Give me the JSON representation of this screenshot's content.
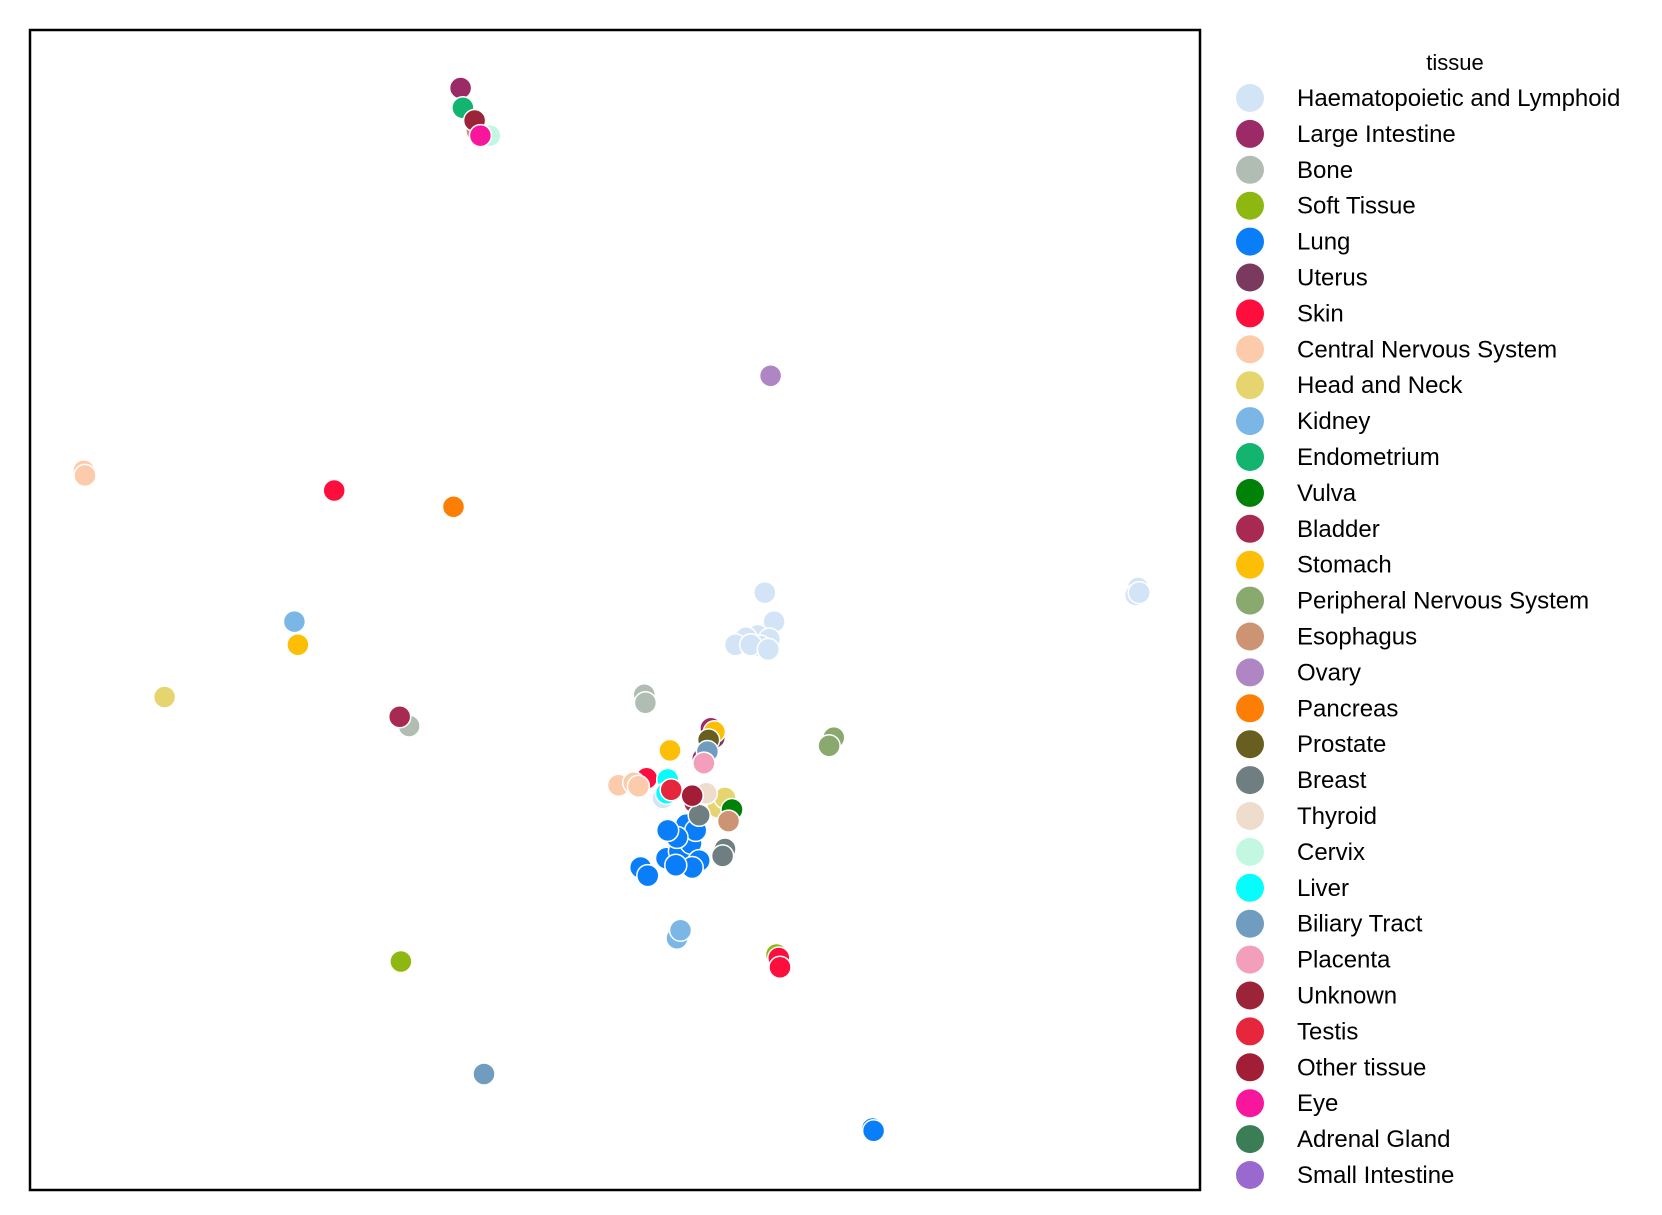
{
  "chart_data": {
    "type": "scatter",
    "title": "",
    "xlabel": "",
    "ylabel": "",
    "xlim": [
      0,
      100
    ],
    "ylim": [
      0,
      100
    ],
    "ticks": "hidden",
    "grid": false,
    "legend": {
      "title": "tissue",
      "placement": "outside-right"
    },
    "series": [
      {
        "name": "Haematopoietic and Lymphoid",
        "color": "#d3e4f6",
        "points": [
          [
            94.7,
            51.9
          ],
          [
            94.5,
            51.3
          ],
          [
            94.8,
            51.5
          ],
          [
            62.8,
            51.5
          ],
          [
            63.6,
            49.0
          ],
          [
            62.2,
            47.8
          ],
          [
            61.2,
            47.6
          ],
          [
            60.3,
            47.0
          ],
          [
            63.2,
            47.5
          ],
          [
            62.4,
            46.9
          ],
          [
            61.6,
            47.0
          ],
          [
            63.1,
            46.6
          ],
          [
            54.1,
            33.8
          ]
        ]
      },
      {
        "name": "Large Intestine",
        "color": "#9b2a66",
        "points": [
          [
            36.8,
            95.0
          ],
          [
            58.2,
            39.8
          ],
          [
            57.5,
            37.2
          ]
        ]
      },
      {
        "name": "Bone",
        "color": "#b1bcb3",
        "points": [
          [
            52.5,
            42.7
          ],
          [
            52.6,
            42.0
          ],
          [
            32.4,
            40.0
          ]
        ]
      },
      {
        "name": "Soft Tissue",
        "color": "#8fb712",
        "points": [
          [
            31.7,
            19.7
          ],
          [
            63.8,
            20.3
          ]
        ]
      },
      {
        "name": "Lung",
        "color": "#0a7ef9",
        "points": [
          [
            52.2,
            27.8
          ],
          [
            52.8,
            27.1
          ],
          [
            54.4,
            28.6
          ],
          [
            55.5,
            29.2
          ],
          [
            56.5,
            29.9
          ],
          [
            57.2,
            28.4
          ],
          [
            56.6,
            27.8
          ],
          [
            55.2,
            28.0
          ],
          [
            56.1,
            31.5
          ],
          [
            56.9,
            31.0
          ],
          [
            55.3,
            30.4
          ],
          [
            54.5,
            31.0
          ],
          [
            72.0,
            5.3
          ],
          [
            72.1,
            5.1
          ]
        ]
      },
      {
        "name": "Uterus",
        "color": "#7a3a5f",
        "points": [
          [
            58.5,
            39.0
          ]
        ]
      },
      {
        "name": "Skin",
        "color": "#fd0e3d",
        "points": [
          [
            26.0,
            60.3
          ],
          [
            52.7,
            35.5
          ],
          [
            64.0,
            20.0
          ],
          [
            64.1,
            19.2
          ]
        ]
      },
      {
        "name": "Central Nervous System",
        "color": "#fbcbac",
        "points": [
          [
            4.6,
            62.0
          ],
          [
            4.7,
            61.6
          ],
          [
            50.3,
            34.9
          ],
          [
            51.6,
            35.1
          ],
          [
            52.0,
            34.8
          ]
        ]
      },
      {
        "name": "Head and Neck",
        "color": "#e6d56f",
        "points": [
          [
            11.5,
            42.5
          ],
          [
            58.8,
            33.0
          ],
          [
            59.4,
            33.8
          ]
        ]
      },
      {
        "name": "Kidney",
        "color": "#7bb7e6",
        "points": [
          [
            22.6,
            49.0
          ],
          [
            55.3,
            21.7
          ],
          [
            55.6,
            22.4
          ]
        ]
      },
      {
        "name": "Endometrium",
        "color": "#13b370",
        "points": [
          [
            37.0,
            93.3
          ]
        ]
      },
      {
        "name": "Vulva",
        "color": "#008108",
        "points": [
          [
            60.0,
            32.8
          ]
        ]
      },
      {
        "name": "Bladder",
        "color": "#a82952",
        "points": [
          [
            31.6,
            40.8
          ],
          [
            56.8,
            33.4
          ]
        ]
      },
      {
        "name": "Stomach",
        "color": "#fdbf05",
        "points": [
          [
            22.9,
            47.0
          ],
          [
            54.7,
            37.9
          ],
          [
            58.5,
            39.5
          ]
        ]
      },
      {
        "name": "Peripheral Nervous System",
        "color": "#89a96e",
        "points": [
          [
            68.7,
            39.0
          ],
          [
            68.3,
            38.3
          ]
        ]
      },
      {
        "name": "Esophagus",
        "color": "#cc9473",
        "points": [
          [
            38.2,
            91.3
          ],
          [
            59.7,
            31.8
          ]
        ]
      },
      {
        "name": "Ovary",
        "color": "#b085c3",
        "points": [
          [
            63.3,
            70.2
          ]
        ]
      },
      {
        "name": "Pancreas",
        "color": "#fd7e05",
        "points": [
          [
            36.2,
            58.9
          ]
        ]
      },
      {
        "name": "Prostate",
        "color": "#675e1f",
        "points": [
          [
            58.0,
            38.8
          ]
        ]
      },
      {
        "name": "Breast",
        "color": "#6f7f81",
        "points": [
          [
            57.2,
            32.3
          ],
          [
            59.4,
            29.4
          ],
          [
            59.2,
            28.8
          ]
        ]
      },
      {
        "name": "Thyroid",
        "color": "#eedccc",
        "points": [
          [
            57.8,
            34.2
          ]
        ]
      },
      {
        "name": "Cervix",
        "color": "#c3f7e1",
        "points": [
          [
            39.3,
            90.9
          ]
        ]
      },
      {
        "name": "Liver",
        "color": "#07fdfd",
        "points": [
          [
            54.5,
            35.4
          ],
          [
            54.4,
            34.2
          ]
        ]
      },
      {
        "name": "Biliary Tract",
        "color": "#709dbf",
        "points": [
          [
            57.9,
            37.8
          ],
          [
            38.8,
            10.0
          ]
        ]
      },
      {
        "name": "Placenta",
        "color": "#f39fbb",
        "points": [
          [
            57.6,
            36.8
          ]
        ]
      },
      {
        "name": "Unknown",
        "color": "#9b2438",
        "points": [
          [
            38.0,
            92.2
          ]
        ]
      },
      {
        "name": "Testis",
        "color": "#e5263d",
        "points": [
          [
            54.8,
            34.5
          ]
        ]
      },
      {
        "name": "Other tissue",
        "color": "#a11e36",
        "points": [
          [
            56.6,
            34.0
          ]
        ]
      },
      {
        "name": "Eye",
        "color": "#f8169c",
        "points": [
          [
            38.5,
            90.9
          ]
        ]
      },
      {
        "name": "Adrenal Gland",
        "color": "#3b7e56",
        "points": []
      },
      {
        "name": "Small Intestine",
        "color": "#9a69d0",
        "points": []
      }
    ]
  }
}
